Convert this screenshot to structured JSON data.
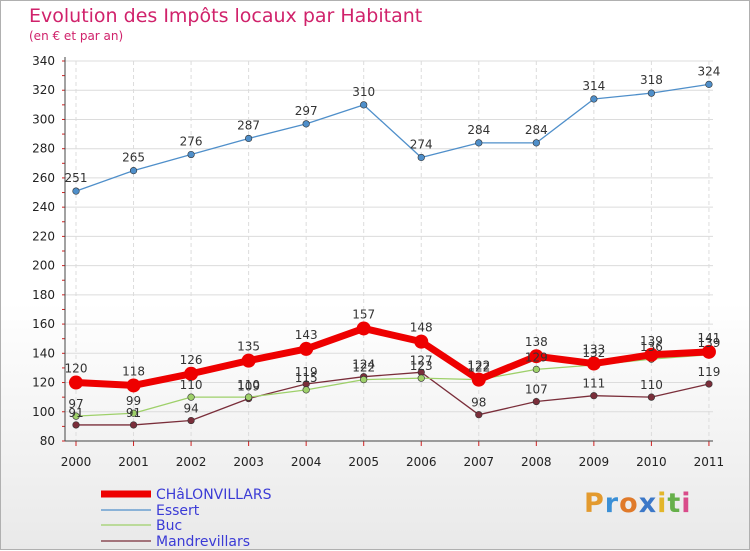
{
  "chart_data": {
    "type": "line",
    "title": "Evolution des Impôts locaux par Habitant",
    "subtitle": "(en € et par an)",
    "x": [
      "2000",
      "2001",
      "2002",
      "2003",
      "2004",
      "2005",
      "2006",
      "2007",
      "2008",
      "2009",
      "2010",
      "2011"
    ],
    "yticks": [
      "80",
      "100",
      "120",
      "140",
      "160",
      "180",
      "200",
      "220",
      "240",
      "260",
      "280",
      "300",
      "320",
      "340"
    ],
    "ylim": [
      80,
      340
    ],
    "series": [
      {
        "name": "CHâLONVILLARS",
        "color": "#ee0000",
        "values": [
          120,
          118,
          126,
          135,
          143,
          157,
          148,
          122,
          138,
          133,
          139,
          141
        ],
        "labels": [
          "120",
          "118",
          "126",
          "135",
          "143",
          "157",
          "148",
          "122",
          "138",
          "133",
          "139",
          "141"
        ]
      },
      {
        "name": "Essert",
        "color": "#4f8fca",
        "values": [
          251,
          265,
          276,
          287,
          297,
          310,
          274,
          284,
          284,
          314,
          318,
          324
        ],
        "labels": [
          "251",
          "265",
          "276",
          "287",
          "297",
          "310",
          "274",
          "284",
          "284",
          "314",
          "318",
          "324"
        ]
      },
      {
        "name": "Buc",
        "color": "#9ed06a",
        "values": [
          97,
          99,
          110,
          110,
          115,
          122,
          123,
          122,
          129,
          132,
          136,
          139
        ],
        "labels": [
          "97",
          "99",
          "110",
          "110",
          "115",
          "122",
          "123",
          "122",
          "129",
          "132",
          "136",
          "139"
        ]
      },
      {
        "name": "Mandrevillars",
        "color": "#7a2e3a",
        "values": [
          91,
          91,
          94,
          109,
          119,
          124,
          127,
          98,
          107,
          111,
          110,
          119
        ],
        "labels": [
          "91",
          "91",
          "94",
          "109",
          "119",
          "124",
          "127",
          "98",
          "107",
          "111",
          "110",
          "119"
        ]
      }
    ]
  },
  "logo": {
    "letters": [
      "P",
      "r",
      "o",
      "x",
      "i",
      "t",
      "i"
    ],
    "colors": [
      "#e39a2e",
      "#3a8fd6",
      "#e07a2a",
      "#3c78c8",
      "#e3b62a",
      "#66b04a",
      "#d94b8a"
    ]
  }
}
